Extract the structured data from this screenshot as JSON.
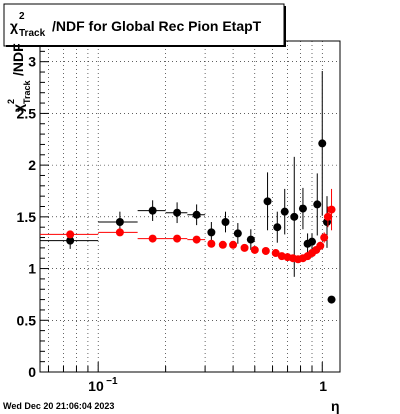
{
  "chart_data": {
    "type": "scatter",
    "title": "/NDF for Global Rec Pion EtapT",
    "title_symbol": "χ",
    "title_sup": "2",
    "title_sub": "Track",
    "xlabel": "η",
    "ylabel": "/NDF",
    "ylabel_symbol": "χ",
    "ylabel_sup": "2",
    "ylabel_sub": "Track",
    "x_scale": "log",
    "xlim": [
      0.055,
      1.2
    ],
    "ylim": [
      0,
      3.2
    ],
    "grid": true,
    "x_tick_labels": [
      {
        "value": 0.1,
        "base": "10",
        "exp": "−1"
      },
      {
        "value": 1,
        "base": "1",
        "exp": ""
      }
    ],
    "y_ticks": [
      {
        "value": 0,
        "label": "0"
      },
      {
        "value": 0.5,
        "label": "0.5"
      },
      {
        "value": 1,
        "label": "1"
      },
      {
        "value": 1.5,
        "label": "1.5"
      },
      {
        "value": 2,
        "label": "2"
      },
      {
        "value": 2.5,
        "label": "2.5"
      },
      {
        "value": 3,
        "label": "3"
      }
    ],
    "series": [
      {
        "color": "#000000",
        "points": [
          {
            "x": 0.075,
            "y": 1.27,
            "err": 0.08,
            "xlo": 0.05,
            "xhi": 0.1
          },
          {
            "x": 0.125,
            "y": 1.45,
            "err": 0.1,
            "xlo": 0.1,
            "xhi": 0.15
          },
          {
            "x": 0.175,
            "y": 1.56,
            "err": 0.1,
            "xlo": 0.15,
            "xhi": 0.2
          },
          {
            "x": 0.225,
            "y": 1.54,
            "err": 0.1,
            "xlo": 0.2,
            "xhi": 0.25
          },
          {
            "x": 0.275,
            "y": 1.52,
            "err": 0.1,
            "xlo": 0.25,
            "xhi": 0.3
          },
          {
            "x": 0.32,
            "y": 1.35,
            "err": 0.1
          },
          {
            "x": 0.37,
            "y": 1.45,
            "err": 0.1
          },
          {
            "x": 0.42,
            "y": 1.34,
            "err": 0.1
          },
          {
            "x": 0.48,
            "y": 1.28,
            "err": 0.1
          },
          {
            "x": 0.57,
            "y": 1.65,
            "err": 0.28
          },
          {
            "x": 0.63,
            "y": 1.4,
            "err": 0.15
          },
          {
            "x": 0.68,
            "y": 1.55,
            "err": 0.22
          },
          {
            "x": 0.75,
            "y": 1.5,
            "err": 0.58
          },
          {
            "x": 0.82,
            "y": 1.58,
            "err": 0.2
          },
          {
            "x": 0.86,
            "y": 1.24,
            "err": 0.1
          },
          {
            "x": 0.9,
            "y": 1.26,
            "err": 0.08
          },
          {
            "x": 0.95,
            "y": 1.62,
            "err": 0.3
          },
          {
            "x": 1.0,
            "y": 2.21,
            "err": 0.7
          },
          {
            "x": 1.05,
            "y": 1.45,
            "err": 0.25
          },
          {
            "x": 1.1,
            "y": 0.7,
            "err": 0
          }
        ]
      },
      {
        "color": "#ff0000",
        "points": [
          {
            "x": 0.075,
            "y": 1.33,
            "err": 0.03,
            "xlo": 0.05,
            "xhi": 0.1
          },
          {
            "x": 0.125,
            "y": 1.35,
            "err": 0.03,
            "xlo": 0.1,
            "xhi": 0.15
          },
          {
            "x": 0.175,
            "y": 1.29,
            "err": 0.02,
            "xlo": 0.15,
            "xhi": 0.2
          },
          {
            "x": 0.225,
            "y": 1.29,
            "err": 0.02,
            "xlo": 0.2,
            "xhi": 0.25
          },
          {
            "x": 0.275,
            "y": 1.28,
            "err": 0.02,
            "xlo": 0.25,
            "xhi": 0.3
          },
          {
            "x": 0.32,
            "y": 1.24,
            "err": 0.02
          },
          {
            "x": 0.36,
            "y": 1.23,
            "err": 0.02
          },
          {
            "x": 0.4,
            "y": 1.23,
            "err": 0.02
          },
          {
            "x": 0.45,
            "y": 1.2,
            "err": 0.02
          },
          {
            "x": 0.5,
            "y": 1.18,
            "err": 0.02
          },
          {
            "x": 0.56,
            "y": 1.17,
            "err": 0.02
          },
          {
            "x": 0.62,
            "y": 1.15,
            "err": 0.02
          },
          {
            "x": 0.66,
            "y": 1.12,
            "err": 0.02
          },
          {
            "x": 0.7,
            "y": 1.11,
            "err": 0.02
          },
          {
            "x": 0.74,
            "y": 1.1,
            "err": 0.02
          },
          {
            "x": 0.78,
            "y": 1.09,
            "err": 0.02
          },
          {
            "x": 0.82,
            "y": 1.1,
            "err": 0.02
          },
          {
            "x": 0.86,
            "y": 1.12,
            "err": 0.03
          },
          {
            "x": 0.9,
            "y": 1.15,
            "err": 0.03
          },
          {
            "x": 0.94,
            "y": 1.18,
            "err": 0.03
          },
          {
            "x": 0.98,
            "y": 1.22,
            "err": 0.04
          },
          {
            "x": 1.02,
            "y": 1.3,
            "err": 0.05
          },
          {
            "x": 1.06,
            "y": 1.5,
            "err": 0.1
          },
          {
            "x": 1.1,
            "y": 1.57,
            "err": 0.2
          }
        ]
      }
    ]
  },
  "footer": {
    "timestamp": "Wed Dec 20 21:06:04 2023"
  }
}
